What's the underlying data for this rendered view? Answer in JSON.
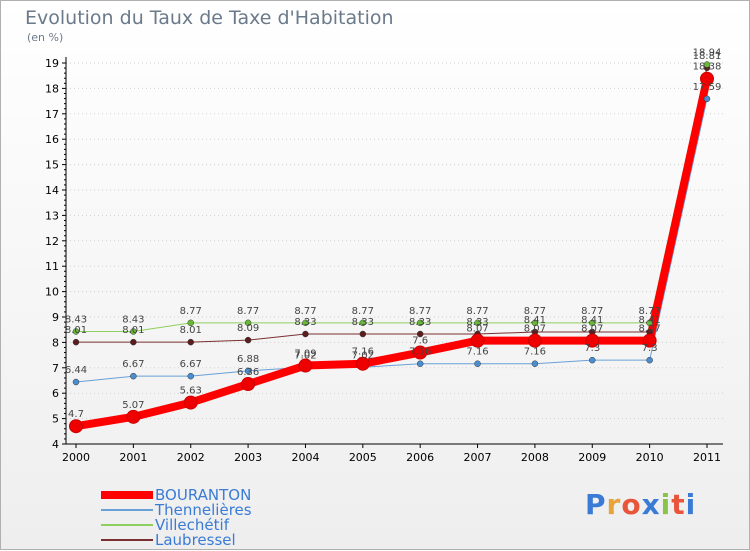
{
  "title": "Evolution du Taux de Taxe d'Habitation",
  "unit": "(en %)",
  "logo": [
    "P",
    "r",
    "o",
    "x",
    "i",
    "t",
    "i"
  ],
  "logo_colors": [
    "#3a7bd5",
    "#e8a33a",
    "#e8553a",
    "#3a7bd5",
    "#8bc34a",
    "#e8553a",
    "#3a7bd5"
  ],
  "chart_data": {
    "type": "line",
    "title": "Evolution du Taux de Taxe d'Habitation",
    "ylabel": "(en %)",
    "xlabel": "",
    "ylim": [
      4,
      19
    ],
    "yticks": [
      4,
      5,
      6,
      7,
      8,
      9,
      10,
      11,
      12,
      13,
      14,
      15,
      16,
      17,
      18,
      19
    ],
    "categories": [
      "2000",
      "2001",
      "2002",
      "2003",
      "2004",
      "2005",
      "2006",
      "2007",
      "2008",
      "2009",
      "2010",
      "2011"
    ],
    "series": [
      {
        "name": "Thennelières",
        "color": "#6aa0d8",
        "point": "#4a8ed0",
        "width": 1,
        "values": [
          6.44,
          6.67,
          6.67,
          6.88,
          7.02,
          7.02,
          7.16,
          7.16,
          7.16,
          7.3,
          7.3,
          17.59
        ],
        "labels": [
          "6.44",
          "6.67",
          "6.67",
          "6.88",
          "7.02",
          "7.02",
          "7.16",
          "7.16",
          "7.16",
          "7.3",
          "7.3",
          "17.59"
        ]
      },
      {
        "name": "Laubressel",
        "color": "#7a3030",
        "point": "#5a1e1e",
        "width": 1,
        "values": [
          8.01,
          8.01,
          8.01,
          8.09,
          8.33,
          8.33,
          8.33,
          8.33,
          8.41,
          8.41,
          8.41,
          18.81
        ],
        "labels": [
          "8.01",
          "8.01",
          "8.01",
          "8.09",
          "8.33",
          "8.33",
          "8.33",
          "8.33",
          "8.41",
          "8.41",
          "8.41",
          "18.81"
        ]
      },
      {
        "name": "Villechétif",
        "color": "#8ed060",
        "point": "#6ab83a",
        "width": 1,
        "values": [
          8.43,
          8.43,
          8.77,
          8.77,
          8.77,
          8.77,
          8.77,
          8.77,
          8.77,
          8.77,
          8.77,
          18.94
        ],
        "labels": [
          "8.43",
          "8.43",
          "8.77",
          "8.77",
          "8.77",
          "8.77",
          "8.77",
          "8.77",
          "8.77",
          "8.77",
          "8.77",
          "18.94"
        ]
      },
      {
        "name": "BOURANTON",
        "color": "#ff0000",
        "point": "#ee0000",
        "width": 8,
        "values": [
          4.7,
          5.07,
          5.63,
          6.36,
          7.09,
          7.16,
          7.6,
          8.07,
          8.07,
          8.07,
          8.07,
          18.38
        ],
        "labels": [
          "4.7",
          "5.07",
          "5.63",
          "6.36",
          "7.09",
          "7.16",
          "7.6",
          "8.07",
          "8.07",
          "8.07",
          "8.07",
          "18.38"
        ]
      }
    ],
    "legend_order": [
      "BOURANTON",
      "Thennelières",
      "Villechétif",
      "Laubressel"
    ]
  }
}
